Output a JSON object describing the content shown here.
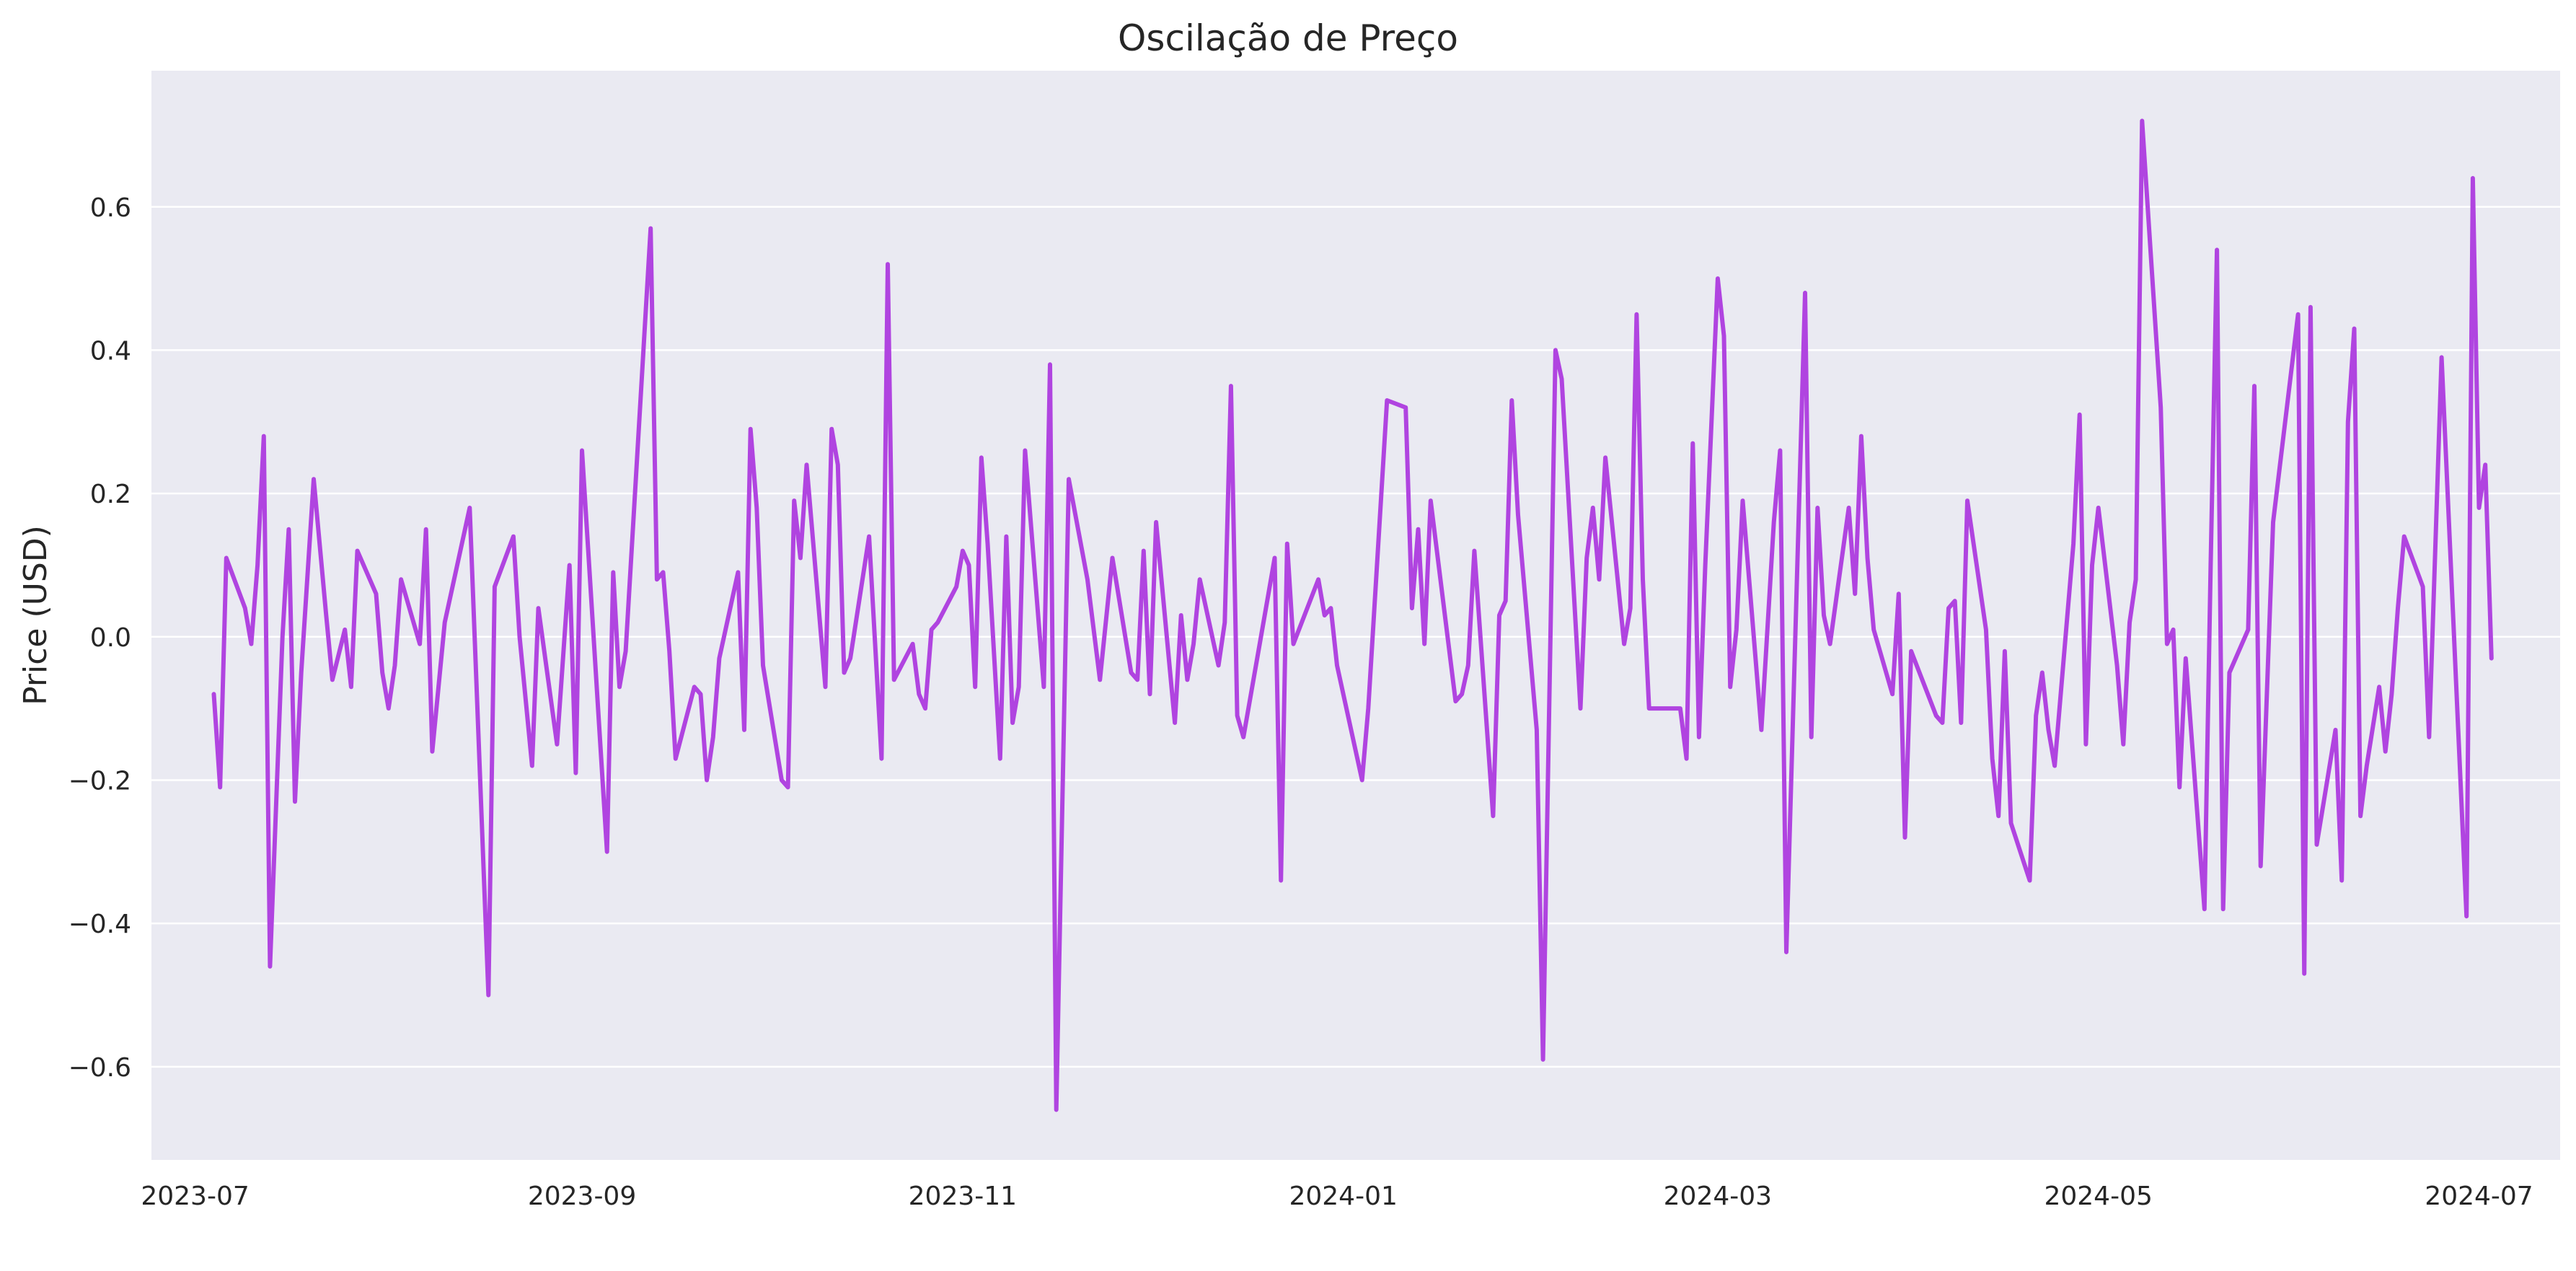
{
  "chart_data": {
    "type": "line",
    "title": "Oscilação de Preço",
    "xlabel": "",
    "ylabel": "Price (USD)",
    "ylim": [
      -0.73,
      0.79
    ],
    "yticks": [
      -0.6,
      -0.4,
      -0.2,
      0.0,
      0.2,
      0.4,
      0.6
    ],
    "ytick_labels": [
      "−0.6",
      "−0.4",
      "−0.2",
      "0.0",
      "0.2",
      "0.4",
      "0.6"
    ],
    "xlim": [
      "2023-06-24",
      "2024-07-14"
    ],
    "xticks": [
      "2023-07-01",
      "2023-09-01",
      "2023-11-01",
      "2024-01-01",
      "2024-03-01",
      "2024-05-01",
      "2024-07-01"
    ],
    "xtick_labels": [
      "2023-07",
      "2023-09",
      "2023-11",
      "2024-01",
      "2024-03",
      "2024-05",
      "2024-07"
    ],
    "grid": true,
    "colors": {
      "line": "#b044e0",
      "plot_bg": "#eaeaf2",
      "grid": "#ffffff",
      "text": "#262626"
    },
    "series": [
      {
        "name": "Price (USD)",
        "points": [
          [
            "2023-07-04",
            -0.08
          ],
          [
            "2023-07-05",
            -0.21
          ],
          [
            "2023-07-06",
            0.11
          ],
          [
            "2023-07-09",
            0.04
          ],
          [
            "2023-07-10",
            -0.01
          ],
          [
            "2023-07-11",
            0.1
          ],
          [
            "2023-07-12",
            0.28
          ],
          [
            "2023-07-13",
            -0.46
          ],
          [
            "2023-07-15",
            0.0
          ],
          [
            "2023-07-16",
            0.15
          ],
          [
            "2023-07-17",
            -0.23
          ],
          [
            "2023-07-18",
            -0.05
          ],
          [
            "2023-07-20",
            0.22
          ],
          [
            "2023-07-22",
            0.03
          ],
          [
            "2023-07-23",
            -0.06
          ],
          [
            "2023-07-25",
            0.01
          ],
          [
            "2023-07-26",
            -0.07
          ],
          [
            "2023-07-27",
            0.12
          ],
          [
            "2023-07-30",
            0.06
          ],
          [
            "2023-07-31",
            -0.05
          ],
          [
            "2023-08-01",
            -0.1
          ],
          [
            "2023-08-02",
            -0.04
          ],
          [
            "2023-08-03",
            0.08
          ],
          [
            "2023-08-06",
            -0.01
          ],
          [
            "2023-08-07",
            0.15
          ],
          [
            "2023-08-08",
            -0.16
          ],
          [
            "2023-08-10",
            0.02
          ],
          [
            "2023-08-14",
            0.18
          ],
          [
            "2023-08-17",
            -0.5
          ],
          [
            "2023-08-18",
            0.07
          ],
          [
            "2023-08-21",
            0.14
          ],
          [
            "2023-08-22",
            0.0
          ],
          [
            "2023-08-24",
            -0.18
          ],
          [
            "2023-08-25",
            0.04
          ],
          [
            "2023-08-28",
            -0.15
          ],
          [
            "2023-08-30",
            0.1
          ],
          [
            "2023-08-31",
            -0.19
          ],
          [
            "2023-09-01",
            0.26
          ],
          [
            "2023-09-05",
            -0.3
          ],
          [
            "2023-09-06",
            0.09
          ],
          [
            "2023-09-07",
            -0.07
          ],
          [
            "2023-09-08",
            -0.02
          ],
          [
            "2023-09-12",
            0.57
          ],
          [
            "2023-09-13",
            0.08
          ],
          [
            "2023-09-14",
            0.09
          ],
          [
            "2023-09-15",
            -0.02
          ],
          [
            "2023-09-16",
            -0.17
          ],
          [
            "2023-09-19",
            -0.07
          ],
          [
            "2023-09-20",
            -0.08
          ],
          [
            "2023-09-21",
            -0.2
          ],
          [
            "2023-09-22",
            -0.14
          ],
          [
            "2023-09-23",
            -0.03
          ],
          [
            "2023-09-26",
            0.09
          ],
          [
            "2023-09-27",
            -0.13
          ],
          [
            "2023-09-28",
            0.29
          ],
          [
            "2023-09-29",
            0.18
          ],
          [
            "2023-09-30",
            -0.04
          ],
          [
            "2023-10-03",
            -0.2
          ],
          [
            "2023-10-04",
            -0.21
          ],
          [
            "2023-10-05",
            0.19
          ],
          [
            "2023-10-06",
            0.11
          ],
          [
            "2023-10-07",
            0.24
          ],
          [
            "2023-10-10",
            -0.07
          ],
          [
            "2023-10-11",
            0.29
          ],
          [
            "2023-10-12",
            0.24
          ],
          [
            "2023-10-13",
            -0.05
          ],
          [
            "2023-10-14",
            -0.03
          ],
          [
            "2023-10-17",
            0.14
          ],
          [
            "2023-10-19",
            -0.17
          ],
          [
            "2023-10-20",
            0.52
          ],
          [
            "2023-10-21",
            -0.06
          ],
          [
            "2023-10-24",
            -0.01
          ],
          [
            "2023-10-25",
            -0.08
          ],
          [
            "2023-10-26",
            -0.1
          ],
          [
            "2023-10-27",
            0.01
          ],
          [
            "2023-10-28",
            0.02
          ],
          [
            "2023-10-31",
            0.07
          ],
          [
            "2023-11-01",
            0.12
          ],
          [
            "2023-11-02",
            0.1
          ],
          [
            "2023-11-03",
            -0.07
          ],
          [
            "2023-11-04",
            0.25
          ],
          [
            "2023-11-05",
            0.13
          ],
          [
            "2023-11-07",
            -0.17
          ],
          [
            "2023-11-08",
            0.14
          ],
          [
            "2023-11-09",
            -0.12
          ],
          [
            "2023-11-10",
            -0.07
          ],
          [
            "2023-11-11",
            0.26
          ],
          [
            "2023-11-14",
            -0.07
          ],
          [
            "2023-11-15",
            0.38
          ],
          [
            "2023-11-16",
            -0.66
          ],
          [
            "2023-11-18",
            0.22
          ],
          [
            "2023-11-21",
            0.08
          ],
          [
            "2023-11-23",
            -0.06
          ],
          [
            "2023-11-25",
            0.11
          ],
          [
            "2023-11-28",
            -0.05
          ],
          [
            "2023-11-29",
            -0.06
          ],
          [
            "2023-11-30",
            0.12
          ],
          [
            "2023-12-01",
            -0.08
          ],
          [
            "2023-12-02",
            0.16
          ],
          [
            "2023-12-05",
            -0.12
          ],
          [
            "2023-12-06",
            0.03
          ],
          [
            "2023-12-07",
            -0.06
          ],
          [
            "2023-12-08",
            -0.01
          ],
          [
            "2023-12-09",
            0.08
          ],
          [
            "2023-12-12",
            -0.04
          ],
          [
            "2023-12-13",
            0.02
          ],
          [
            "2023-12-14",
            0.35
          ],
          [
            "2023-12-15",
            -0.11
          ],
          [
            "2023-12-16",
            -0.14
          ],
          [
            "2023-12-20",
            0.06
          ],
          [
            "2023-12-21",
            0.11
          ],
          [
            "2023-12-22",
            -0.34
          ],
          [
            "2023-12-23",
            0.13
          ],
          [
            "2023-12-24",
            -0.01
          ],
          [
            "2023-12-28",
            0.08
          ],
          [
            "2023-12-29",
            0.03
          ],
          [
            "2023-12-30",
            0.04
          ],
          [
            "2023-12-31",
            -0.04
          ],
          [
            "2024-01-04",
            -0.2
          ],
          [
            "2024-01-05",
            -0.1
          ],
          [
            "2024-01-08",
            0.33
          ],
          [
            "2024-01-11",
            0.32
          ],
          [
            "2024-01-12",
            0.04
          ],
          [
            "2024-01-13",
            0.15
          ],
          [
            "2024-01-14",
            -0.01
          ],
          [
            "2024-01-15",
            0.19
          ],
          [
            "2024-01-19",
            -0.09
          ],
          [
            "2024-01-20",
            -0.08
          ],
          [
            "2024-01-21",
            -0.04
          ],
          [
            "2024-01-22",
            0.12
          ],
          [
            "2024-01-25",
            -0.25
          ],
          [
            "2024-01-26",
            0.03
          ],
          [
            "2024-01-27",
            0.05
          ],
          [
            "2024-01-28",
            0.33
          ],
          [
            "2024-01-29",
            0.17
          ],
          [
            "2024-02-01",
            -0.13
          ],
          [
            "2024-02-02",
            -0.59
          ],
          [
            "2024-02-04",
            0.4
          ],
          [
            "2024-02-05",
            0.36
          ],
          [
            "2024-02-08",
            -0.1
          ],
          [
            "2024-02-09",
            0.11
          ],
          [
            "2024-02-10",
            0.18
          ],
          [
            "2024-02-11",
            0.08
          ],
          [
            "2024-02-12",
            0.25
          ],
          [
            "2024-02-15",
            -0.01
          ],
          [
            "2024-02-16",
            0.04
          ],
          [
            "2024-02-17",
            0.45
          ],
          [
            "2024-02-18",
            0.08
          ],
          [
            "2024-02-19",
            -0.1
          ],
          [
            "2024-02-23",
            -0.1
          ],
          [
            "2024-02-24",
            -0.1
          ],
          [
            "2024-02-25",
            -0.17
          ],
          [
            "2024-02-26",
            0.27
          ],
          [
            "2024-02-27",
            -0.14
          ],
          [
            "2024-02-28",
            0.1
          ],
          [
            "2024-03-01",
            0.5
          ],
          [
            "2024-03-02",
            0.42
          ],
          [
            "2024-03-03",
            -0.07
          ],
          [
            "2024-03-04",
            0.01
          ],
          [
            "2024-03-05",
            0.19
          ],
          [
            "2024-03-08",
            -0.13
          ],
          [
            "2024-03-10",
            0.16
          ],
          [
            "2024-03-11",
            0.26
          ],
          [
            "2024-03-12",
            -0.44
          ],
          [
            "2024-03-15",
            0.48
          ],
          [
            "2024-03-16",
            -0.14
          ],
          [
            "2024-03-17",
            0.18
          ],
          [
            "2024-03-18",
            0.03
          ],
          [
            "2024-03-19",
            -0.01
          ],
          [
            "2024-03-22",
            0.18
          ],
          [
            "2024-03-23",
            0.06
          ],
          [
            "2024-03-24",
            0.28
          ],
          [
            "2024-03-25",
            0.11
          ],
          [
            "2024-03-26",
            0.01
          ],
          [
            "2024-03-29",
            -0.08
          ],
          [
            "2024-03-30",
            0.06
          ],
          [
            "2024-03-31",
            -0.28
          ],
          [
            "2024-04-01",
            -0.02
          ],
          [
            "2024-04-05",
            -0.11
          ],
          [
            "2024-04-06",
            -0.12
          ],
          [
            "2024-04-07",
            0.04
          ],
          [
            "2024-04-08",
            0.05
          ],
          [
            "2024-04-09",
            -0.12
          ],
          [
            "2024-04-10",
            0.19
          ],
          [
            "2024-04-13",
            0.01
          ],
          [
            "2024-04-14",
            -0.17
          ],
          [
            "2024-04-15",
            -0.25
          ],
          [
            "2024-04-16",
            -0.02
          ],
          [
            "2024-04-17",
            -0.26
          ],
          [
            "2024-04-20",
            -0.34
          ],
          [
            "2024-04-21",
            -0.11
          ],
          [
            "2024-04-22",
            -0.05
          ],
          [
            "2024-04-23",
            -0.13
          ],
          [
            "2024-04-24",
            -0.18
          ],
          [
            "2024-04-27",
            0.13
          ],
          [
            "2024-04-28",
            0.31
          ],
          [
            "2024-04-29",
            -0.15
          ],
          [
            "2024-04-30",
            0.1
          ],
          [
            "2024-05-01",
            0.18
          ],
          [
            "2024-05-04",
            -0.04
          ],
          [
            "2024-05-05",
            -0.15
          ],
          [
            "2024-05-06",
            0.02
          ],
          [
            "2024-05-07",
            0.08
          ],
          [
            "2024-05-08",
            0.72
          ],
          [
            "2024-05-11",
            0.32
          ],
          [
            "2024-05-12",
            -0.01
          ],
          [
            "2024-05-13",
            0.01
          ],
          [
            "2024-05-14",
            -0.21
          ],
          [
            "2024-05-15",
            -0.03
          ],
          [
            "2024-05-18",
            -0.38
          ],
          [
            "2024-05-19",
            0.1
          ],
          [
            "2024-05-20",
            0.54
          ],
          [
            "2024-05-21",
            -0.38
          ],
          [
            "2024-05-22",
            -0.05
          ],
          [
            "2024-05-25",
            0.01
          ],
          [
            "2024-05-26",
            0.35
          ],
          [
            "2024-05-27",
            -0.32
          ],
          [
            "2024-05-29",
            0.16
          ],
          [
            "2024-06-02",
            0.45
          ],
          [
            "2024-06-03",
            -0.47
          ],
          [
            "2024-06-04",
            0.46
          ],
          [
            "2024-06-05",
            -0.29
          ],
          [
            "2024-06-08",
            -0.13
          ],
          [
            "2024-06-09",
            -0.34
          ],
          [
            "2024-06-10",
            0.3
          ],
          [
            "2024-06-11",
            0.43
          ],
          [
            "2024-06-12",
            -0.25
          ],
          [
            "2024-06-13",
            -0.18
          ],
          [
            "2024-06-15",
            -0.07
          ],
          [
            "2024-06-16",
            -0.16
          ],
          [
            "2024-06-17",
            -0.08
          ],
          [
            "2024-06-18",
            0.04
          ],
          [
            "2024-06-19",
            0.14
          ],
          [
            "2024-06-22",
            0.07
          ],
          [
            "2024-06-23",
            -0.14
          ],
          [
            "2024-06-25",
            0.39
          ],
          [
            "2024-06-29",
            -0.39
          ],
          [
            "2024-06-30",
            0.64
          ],
          [
            "2024-07-01",
            0.18
          ],
          [
            "2024-07-02",
            0.24
          ],
          [
            "2024-07-03",
            -0.03
          ]
        ]
      }
    ]
  }
}
